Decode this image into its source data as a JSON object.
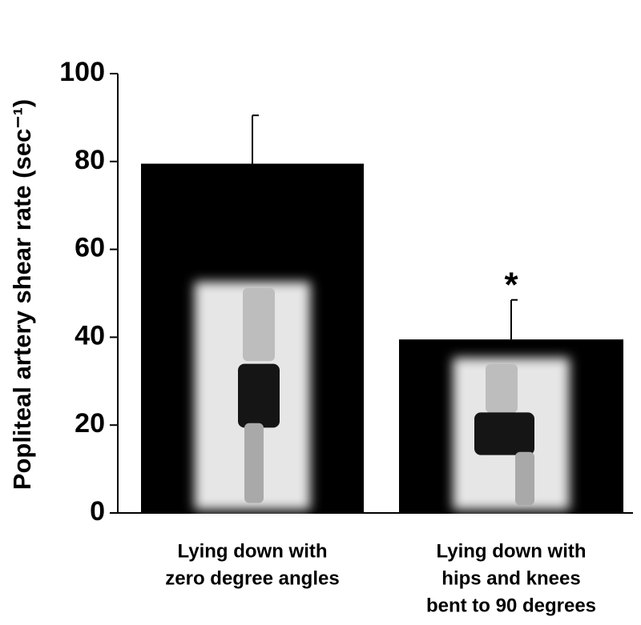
{
  "chart_data": {
    "type": "bar",
    "ylabel": "Popliteal artery shear rate (sec⁻¹)",
    "categories": [
      [
        "Lying down with",
        "zero degree angles"
      ],
      [
        "Lying down with",
        "hips and knees",
        "bent to 90 degrees"
      ]
    ],
    "values": [
      79.5,
      39.5
    ],
    "errors": [
      11,
      9
    ],
    "color": "#000000",
    "annotation": "*",
    "ylim": [
      0,
      100
    ],
    "yticks": [
      0,
      20,
      40,
      60,
      80,
      100
    ]
  }
}
